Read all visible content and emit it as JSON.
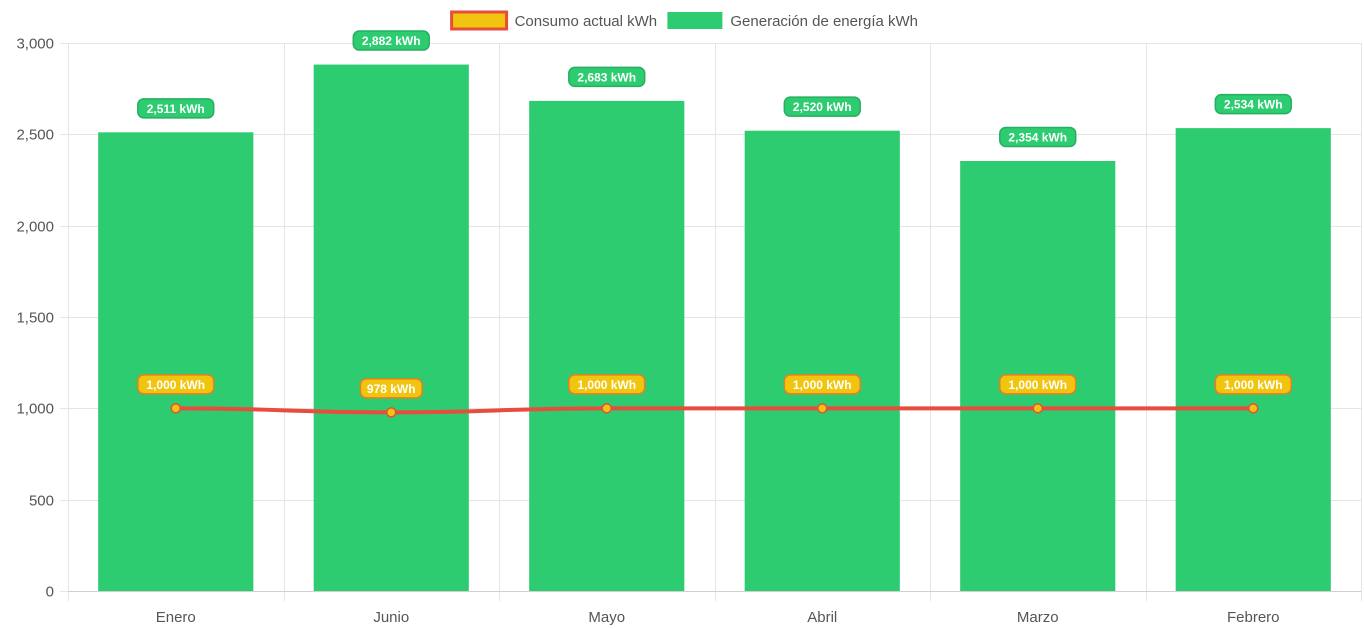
{
  "chart_data": {
    "type": "bar",
    "categories": [
      "Enero",
      "Junio",
      "Mayo",
      "Abril",
      "Marzo",
      "Febrero"
    ],
    "series": [
      {
        "name": "Consumo actual kWh",
        "type": "line",
        "values": [
          1000,
          978,
          1000,
          1000,
          1000,
          1000
        ],
        "labels": [
          "1,000 kWh",
          "978 kWh",
          "1,000 kWh",
          "1,000 kWh",
          "1,000 kWh",
          "1,000 kWh"
        ],
        "color": "#e74c3c",
        "point_color": "#f1c40f"
      },
      {
        "name": "Generación de energía kWh",
        "type": "bar",
        "values": [
          2511,
          2882,
          2683,
          2520,
          2354,
          2534
        ],
        "labels": [
          "2,511 kWh",
          "2,882 kWh",
          "2,683 kWh",
          "2,520 kWh",
          "2,354 kWh",
          "2,534 kWh"
        ],
        "color": "#2ecc71"
      }
    ],
    "y_ticks": [
      "0",
      "500",
      "1,000",
      "1,500",
      "2,000",
      "2,500",
      "3,000"
    ],
    "ylim": [
      0,
      3000
    ],
    "grid": true,
    "legend_position": "top"
  }
}
